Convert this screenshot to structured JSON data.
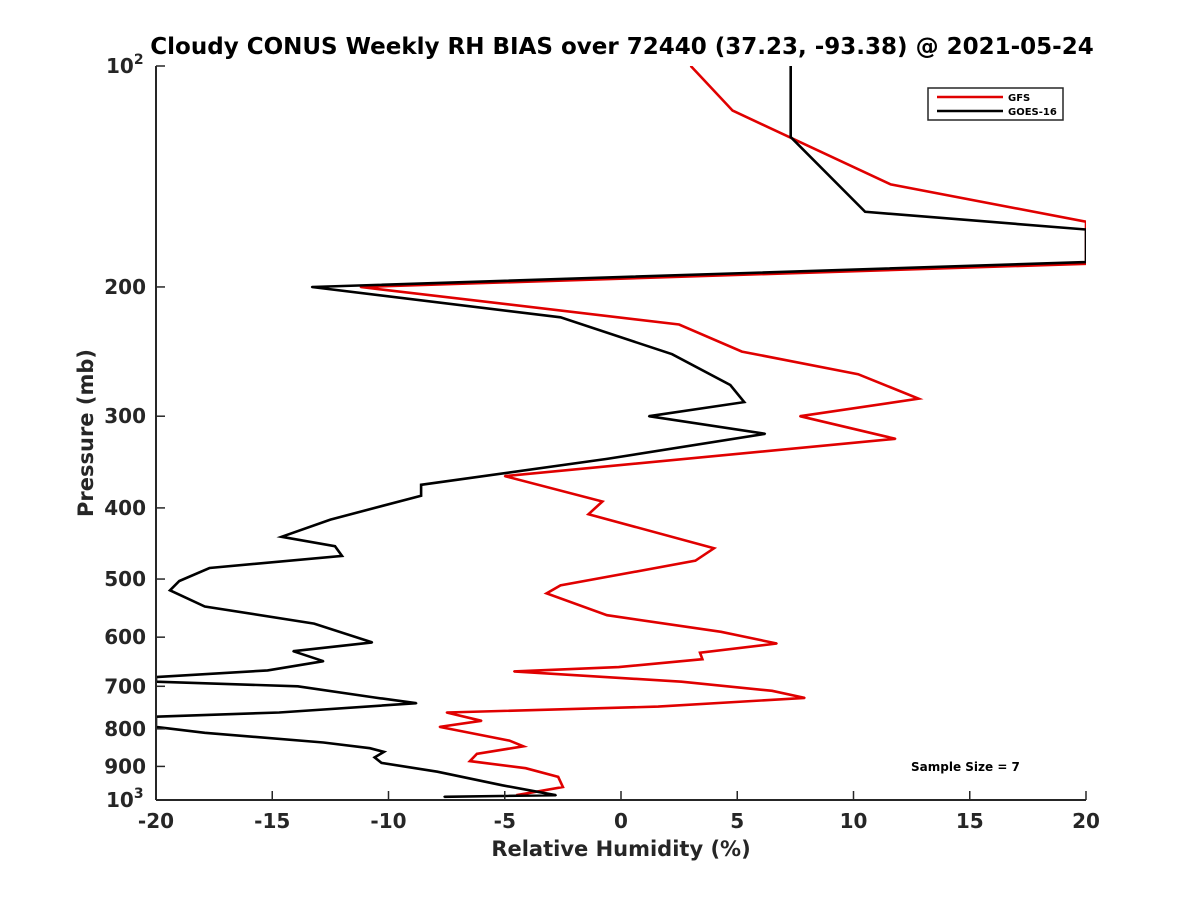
{
  "chart_data": {
    "type": "line",
    "title": "Cloudy CONUS Weekly RH BIAS over 72440 (37.23, -93.38) @ 2021-05-24",
    "xlabel": "Relative Humidity (%)",
    "ylabel": "Pressure (mb)",
    "xlim": [
      -20,
      20
    ],
    "ylim": [
      100,
      1000
    ],
    "yscale": "log",
    "y_reversed": true,
    "grid": false,
    "legend_position": "top-right",
    "annotation": "Sample Size = 7",
    "x_ticks": [
      {
        "value": -20,
        "label": "-20"
      },
      {
        "value": -15,
        "label": "-15"
      },
      {
        "value": -10,
        "label": "-10"
      },
      {
        "value": -5,
        "label": "-5"
      },
      {
        "value": 0,
        "label": "0"
      },
      {
        "value": 5,
        "label": "5"
      },
      {
        "value": 10,
        "label": "10"
      },
      {
        "value": 15,
        "label": "15"
      },
      {
        "value": 20,
        "label": "20"
      }
    ],
    "y_ticks": [
      {
        "value": 100,
        "label": "10",
        "sup": "2"
      },
      {
        "value": 200,
        "label": "200",
        "sup": ""
      },
      {
        "value": 300,
        "label": "300",
        "sup": ""
      },
      {
        "value": 400,
        "label": "400",
        "sup": ""
      },
      {
        "value": 500,
        "label": "500",
        "sup": ""
      },
      {
        "value": 600,
        "label": "600",
        "sup": ""
      },
      {
        "value": 700,
        "label": "700",
        "sup": ""
      },
      {
        "value": 800,
        "label": "800",
        "sup": ""
      },
      {
        "value": 900,
        "label": "900",
        "sup": ""
      },
      {
        "value": 1000,
        "label": "10",
        "sup": "3"
      }
    ],
    "series": [
      {
        "name": "GFS",
        "color": "#e00000",
        "points": [
          [
            3.0,
            100
          ],
          [
            4.8,
            115
          ],
          [
            11.6,
            145
          ],
          [
            20.0,
            163
          ],
          [
            20.0,
            186
          ],
          [
            -11.2,
            200
          ],
          [
            2.5,
            225
          ],
          [
            5.2,
            245
          ],
          [
            10.2,
            263
          ],
          [
            12.8,
            284
          ],
          [
            7.7,
            300
          ],
          [
            11.8,
            322
          ],
          [
            -5.0,
            362
          ],
          [
            -0.8,
            392
          ],
          [
            -1.4,
            408
          ],
          [
            4.0,
            454
          ],
          [
            3.2,
            472
          ],
          [
            -2.6,
            510
          ],
          [
            -3.2,
            523
          ],
          [
            -0.6,
            560
          ],
          [
            4.3,
            590
          ],
          [
            6.7,
            612
          ],
          [
            3.4,
            630
          ],
          [
            3.5,
            643
          ],
          [
            -0.1,
            659
          ],
          [
            -4.6,
            668
          ],
          [
            2.6,
            690
          ],
          [
            6.5,
            710
          ],
          [
            7.9,
            726
          ],
          [
            1.6,
            746
          ],
          [
            -7.5,
            760
          ],
          [
            -6.0,
            780
          ],
          [
            -7.8,
            795
          ],
          [
            -4.8,
            830
          ],
          [
            -4.2,
            845
          ],
          [
            -6.2,
            865
          ],
          [
            -6.5,
            885
          ],
          [
            -4.1,
            905
          ],
          [
            -2.7,
            930
          ],
          [
            -2.5,
            960
          ],
          [
            -4.5,
            985
          ]
        ]
      },
      {
        "name": "GOES-16",
        "color": "#000000",
        "points": [
          [
            7.3,
            100
          ],
          [
            7.3,
            125
          ],
          [
            10.5,
            158
          ],
          [
            20.0,
            167
          ],
          [
            20.0,
            185
          ],
          [
            -13.3,
            200
          ],
          [
            -2.6,
            220
          ],
          [
            2.2,
            247
          ],
          [
            4.7,
            272
          ],
          [
            5.3,
            287
          ],
          [
            1.2,
            300
          ],
          [
            6.2,
            317
          ],
          [
            -0.6,
            343
          ],
          [
            -8.6,
            372
          ],
          [
            -8.6,
            385
          ],
          [
            -12.5,
            415
          ],
          [
            -14.6,
            438
          ],
          [
            -12.3,
            451
          ],
          [
            -12.0,
            465
          ],
          [
            -17.7,
            483
          ],
          [
            -19.0,
            503
          ],
          [
            -19.4,
            518
          ],
          [
            -17.9,
            545
          ],
          [
            -13.2,
            575
          ],
          [
            -10.7,
            610
          ],
          [
            -14.1,
            627
          ],
          [
            -12.8,
            647
          ],
          [
            -15.2,
            666
          ],
          [
            -20.0,
            680
          ],
          [
            -20.0,
            690
          ],
          [
            -13.9,
            700
          ],
          [
            -10.6,
            725
          ],
          [
            -8.8,
            738
          ],
          [
            -14.7,
            760
          ],
          [
            -20.0,
            770
          ],
          [
            -20.0,
            795
          ],
          [
            -17.9,
            810
          ],
          [
            -12.8,
            835
          ],
          [
            -10.8,
            850
          ],
          [
            -10.2,
            860
          ],
          [
            -10.6,
            875
          ],
          [
            -10.3,
            890
          ],
          [
            -7.9,
            915
          ],
          [
            -5.1,
            955
          ],
          [
            -2.8,
            985
          ],
          [
            -7.6,
            990
          ]
        ]
      }
    ]
  }
}
